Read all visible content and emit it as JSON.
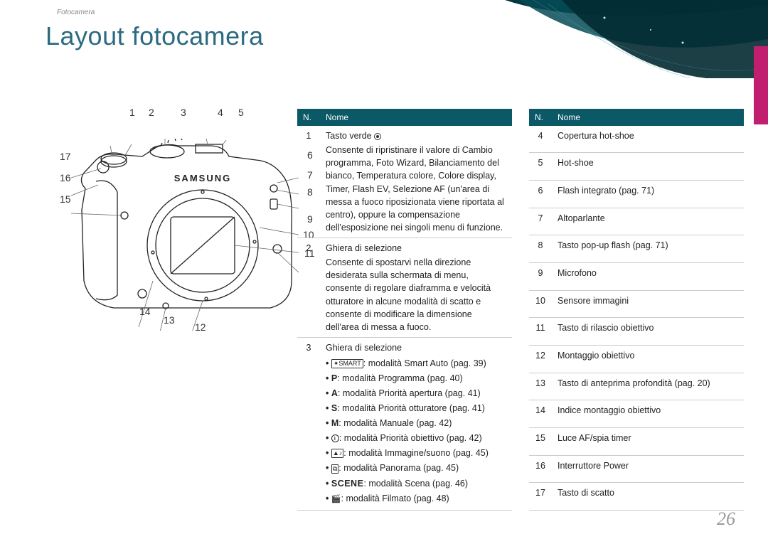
{
  "breadcrumb": "Fotocamera",
  "title": "Layout fotocamera",
  "page_number": "26",
  "accent_color": "#2b6a7f",
  "table_header_bg": "#0b5866",
  "side_tab_color": "#c21e6f",
  "diagram": {
    "callouts_top": [
      "1",
      "2",
      "3",
      "4",
      "5"
    ],
    "callouts_right": [
      "6",
      "7",
      "8",
      "9",
      "10",
      "11"
    ],
    "callouts_left": [
      "17",
      "16",
      "15"
    ],
    "callouts_bottom": [
      "14",
      "13",
      "12"
    ]
  },
  "table1": {
    "header_num": "N.",
    "header_name": "Nome",
    "rows": [
      {
        "num": "1",
        "title": "Tasto verde",
        "title_icon": "circle-dot",
        "desc": "Consente di ripristinare il valore di Cambio programma, Foto Wizard, Bilanciamento del bianco, Temperatura colore, Colore display, Timer, Flash EV, Selezione AF (un'area di messa a fuoco riposizionata viene riportata al centro), oppure la compensazione dell'esposizione nei singoli menu di funzione."
      },
      {
        "num": "2",
        "title": "Ghiera di selezione",
        "desc": "Consente di spostarvi nella direzione desiderata sulla schermata di menu, consente di regolare diaframma e velocità otturatore in alcune modalità di scatto e consente di modificare la dimensione dell'area di messa a fuoco."
      },
      {
        "num": "3",
        "title": "Ghiera di selezione",
        "modes": [
          {
            "icon": "smart-box",
            "text": ": modalità Smart Auto (pag. 39)"
          },
          {
            "icon": "letter-P",
            "text": ": modalità Programma (pag. 40)"
          },
          {
            "icon": "letter-A",
            "text": ": modalità Priorità apertura (pag. 41)"
          },
          {
            "icon": "letter-S",
            "text": ": modalità Priorità otturatore (pag. 41)"
          },
          {
            "icon": "letter-M",
            "text": ": modalità Manuale (pag. 42)"
          },
          {
            "icon": "lens-circle",
            "text": ": modalità Priorità obiettivo (pag. 42)"
          },
          {
            "icon": "picture-box",
            "text": ": modalità Immagine/suono (pag. 45)"
          },
          {
            "icon": "pano-box",
            "text": ": modalità Panorama (pag. 45)"
          },
          {
            "icon": "scene-text",
            "text": ": modalità Scena (pag. 46)"
          },
          {
            "icon": "movie-icon",
            "text": ": modalità Filmato (pag. 48)"
          }
        ]
      }
    ]
  },
  "table2": {
    "header_num": "N.",
    "header_name": "Nome",
    "rows": [
      {
        "num": "4",
        "name": "Copertura hot-shoe"
      },
      {
        "num": "5",
        "name": "Hot-shoe"
      },
      {
        "num": "6",
        "name": "Flash integrato (pag. 71)"
      },
      {
        "num": "7",
        "name": "Altoparlante"
      },
      {
        "num": "8",
        "name": "Tasto pop-up flash (pag. 71)"
      },
      {
        "num": "9",
        "name": "Microfono"
      },
      {
        "num": "10",
        "name": "Sensore immagini"
      },
      {
        "num": "11",
        "name": "Tasto di rilascio obiettivo"
      },
      {
        "num": "12",
        "name": "Montaggio obiettivo"
      },
      {
        "num": "13",
        "name": "Tasto di anteprima profondità (pag. 20)"
      },
      {
        "num": "14",
        "name": "Indice montaggio obiettivo"
      },
      {
        "num": "15",
        "name": "Luce AF/spia timer"
      },
      {
        "num": "16",
        "name": "Interruttore Power"
      },
      {
        "num": "17",
        "name": "Tasto di scatto"
      }
    ]
  }
}
